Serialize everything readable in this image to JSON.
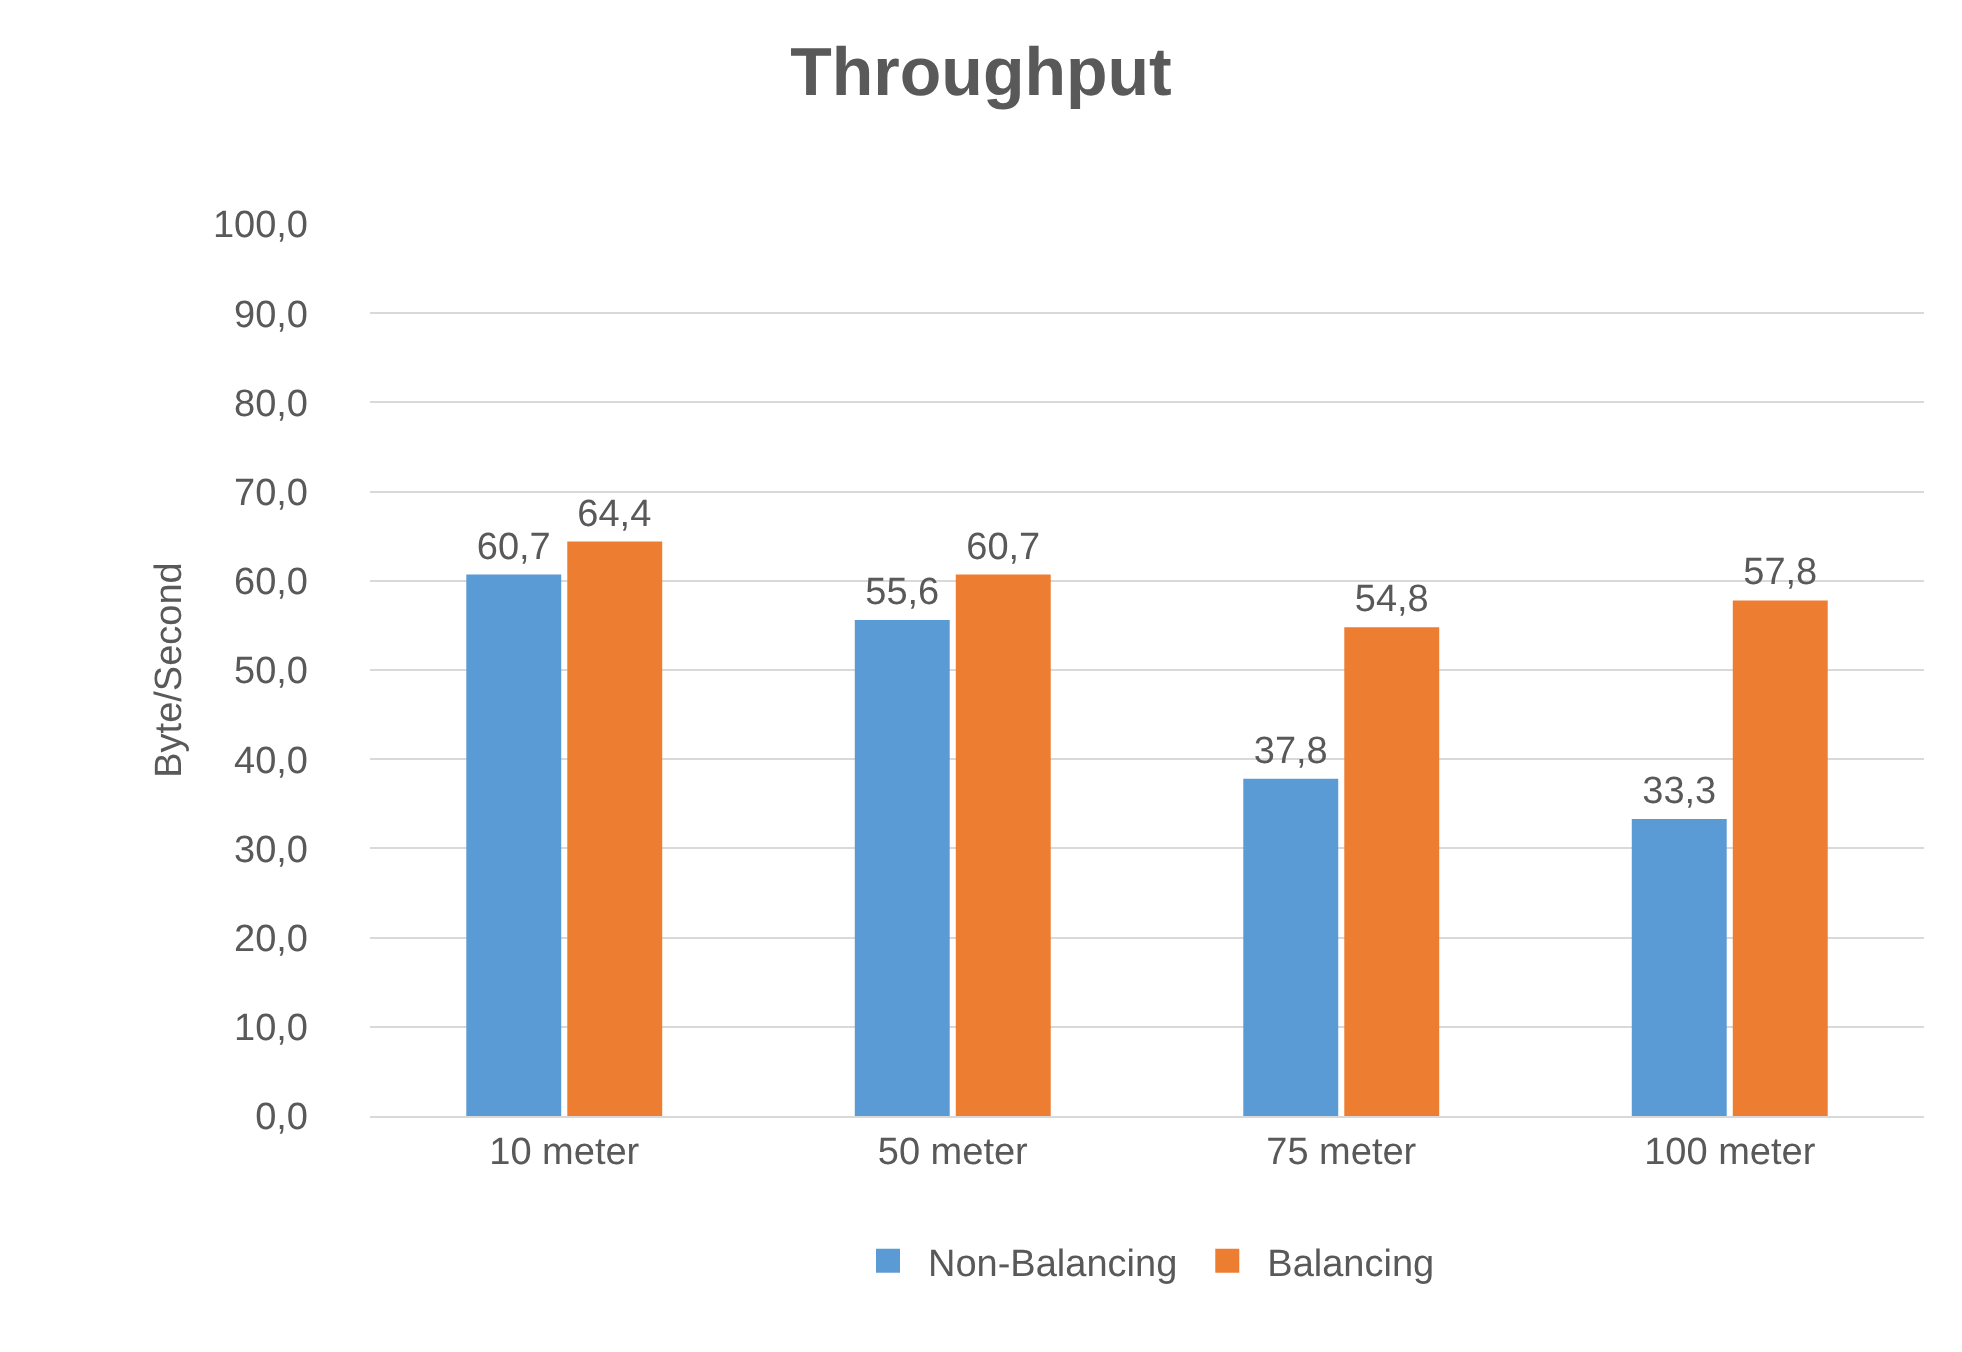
{
  "chart_data": {
    "type": "bar",
    "title": "Throughput",
    "ylabel": "Byte/Second",
    "categories": [
      "10 meter",
      "50 meter",
      "75 meter",
      "100 meter"
    ],
    "series": [
      {
        "name": "Non-Balancing",
        "color": "#5b9bd5",
        "values": [
          60.7,
          55.6,
          37.8,
          33.3
        ],
        "value_labels": [
          "60,7",
          "55,6",
          "37,8",
          "33,3"
        ]
      },
      {
        "name": "Balancing",
        "color": "#ed7d31",
        "values": [
          64.4,
          60.7,
          54.8,
          57.8
        ],
        "value_labels": [
          "64,4",
          "60,7",
          "54,8",
          "57,8"
        ]
      }
    ],
    "ylim": [
      0,
      100
    ],
    "yticks": [
      {
        "value": 0,
        "label": "0,0"
      },
      {
        "value": 10,
        "label": "10,0"
      },
      {
        "value": 20,
        "label": "20,0"
      },
      {
        "value": 30,
        "label": "30,0"
      },
      {
        "value": 40,
        "label": "40,0"
      },
      {
        "value": 50,
        "label": "50,0"
      },
      {
        "value": 60,
        "label": "60,0"
      },
      {
        "value": 70,
        "label": "70,0"
      },
      {
        "value": 80,
        "label": "80,0"
      },
      {
        "value": 90,
        "label": "90,0"
      },
      {
        "value": 100,
        "label": "100,0"
      }
    ],
    "grid": "y",
    "legend": "bottom"
  }
}
